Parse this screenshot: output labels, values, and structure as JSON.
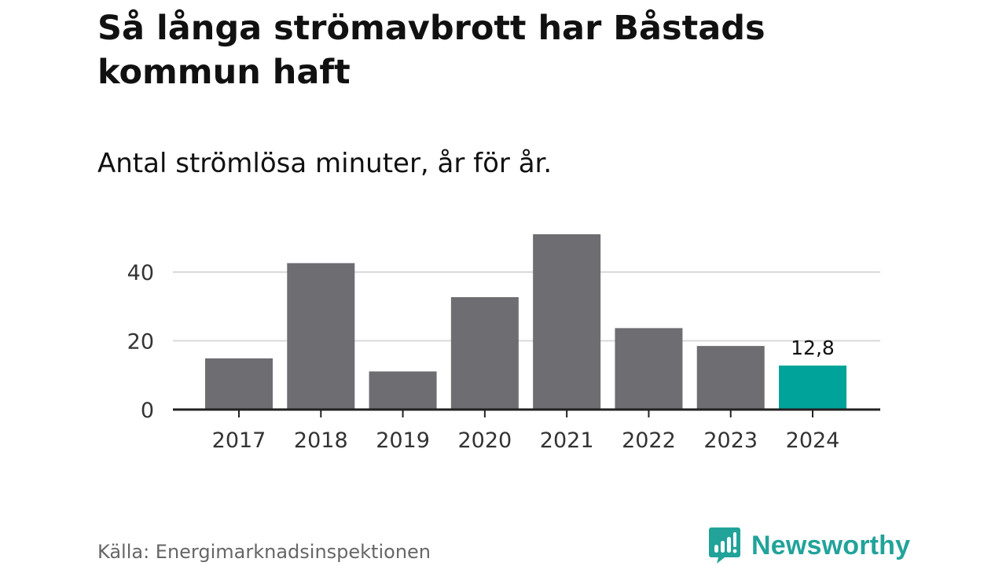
{
  "title": "Så långa strömavbrott har Båstads kommun haft",
  "subtitle": "Antal strömlösa minuter, år för år.",
  "source": "Källa: Energimarknadsinspektionen",
  "brand": {
    "name": "Newsworthy",
    "icon": "newsworthy-logo-icon",
    "color": "#21a39a"
  },
  "chart_data": {
    "type": "bar",
    "title": "Så långa strömavbrott har Båstads kommun haft",
    "subtitle": "Antal strömlösa minuter, år för år.",
    "xlabel": "",
    "ylabel": "",
    "categories": [
      "2017",
      "2018",
      "2019",
      "2020",
      "2021",
      "2022",
      "2023",
      "2024"
    ],
    "values": [
      14.9,
      42.6,
      11.1,
      32.7,
      51,
      23.7,
      18.5,
      12.8
    ],
    "ylim": [
      0,
      51
    ],
    "yticks": [
      0,
      20,
      40
    ],
    "ytick_labels": [
      "0",
      "20",
      "40"
    ],
    "grid": true,
    "highlight_index": 7,
    "data_labels": [
      {
        "index": 7,
        "text": "12,8"
      }
    ],
    "colors": {
      "bar": "#6e6d72",
      "highlight": "#00a399",
      "grid": "#d9d9d9",
      "axis": "#222222",
      "tick_text": "#333333"
    }
  }
}
